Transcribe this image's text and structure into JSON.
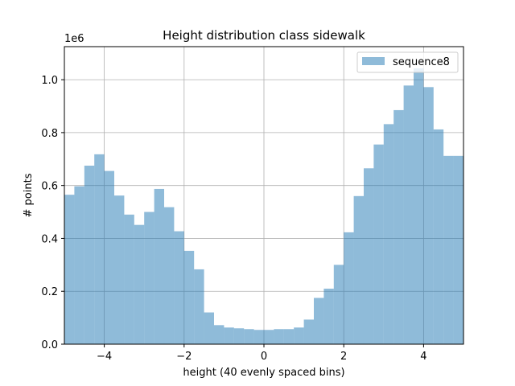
{
  "chart_data": {
    "type": "bar",
    "title": "Height distribution class sidewalk",
    "xlabel": "height (40 evenly spaced bins)",
    "ylabel": "# points",
    "y_offset_label": "1e6",
    "xlim": [
      -5,
      5
    ],
    "ylim": [
      0,
      1125000
    ],
    "x_ticks": [
      -4,
      -2,
      0,
      2,
      4
    ],
    "x_tick_labels": [
      "−4",
      "−2",
      "0",
      "2",
      "4"
    ],
    "y_ticks": [
      0,
      200000,
      400000,
      600000,
      800000,
      1000000
    ],
    "y_tick_labels": [
      "0.0",
      "0.2",
      "0.4",
      "0.6",
      "0.8",
      "1.0"
    ],
    "grid": true,
    "legend_position": "top-right",
    "bin_edges_start": -5,
    "bin_width": 0.25,
    "series": [
      {
        "name": "sequence8",
        "color": "#1f77b4",
        "opacity": 0.5,
        "values": [
          565000,
          597000,
          675000,
          718000,
          655000,
          562000,
          490000,
          451000,
          500000,
          587000,
          518000,
          427000,
          353000,
          283000,
          120000,
          72000,
          63000,
          60000,
          57000,
          54000,
          54000,
          57000,
          57000,
          63000,
          93000,
          175000,
          210000,
          300000,
          423000,
          560000,
          665000,
          755000,
          832000,
          885000,
          978000,
          1043000,
          972000,
          812000,
          712000,
          712000
        ]
      }
    ]
  }
}
